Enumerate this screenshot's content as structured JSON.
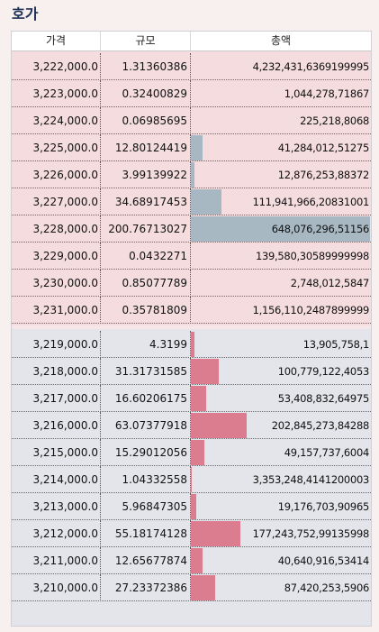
{
  "title": "호가",
  "headers": {
    "price": "가격",
    "size": "규모",
    "total": "총액"
  },
  "colors": {
    "ask_bg": "#f4dcdf",
    "bid_bg": "#e3e5ea",
    "ask_bar": "#a7b8c3",
    "bid_bar": "#db7d8f",
    "title": "#1c2f55"
  },
  "asks": [
    {
      "price": "3,222,000.0",
      "size": "1.31360386",
      "total": "4,232,431,6369199995",
      "pct": 0.0
    },
    {
      "price": "3,223,000.0",
      "size": "0.32400829",
      "total": "1,044,278,71867",
      "pct": 0.0
    },
    {
      "price": "3,224,000.0",
      "size": "0.06985695",
      "total": "225,218,8068",
      "pct": 0.0
    },
    {
      "price": "3,225,000.0",
      "size": "12.80124419",
      "total": "41,284,012,51275",
      "pct": 0.064
    },
    {
      "price": "3,226,000.0",
      "size": "3.99139922",
      "total": "12,876,253,88372",
      "pct": 0.02
    },
    {
      "price": "3,227,000.0",
      "size": "34.68917453",
      "total": "111,941,966,20831001",
      "pct": 0.173
    },
    {
      "price": "3,228,000.0",
      "size": "200.76713027",
      "total": "648,076,296,51156",
      "pct": 1.0
    },
    {
      "price": "3,229,000.0",
      "size": "0.0432271",
      "total": "139,580,30589999998",
      "pct": 0.0
    },
    {
      "price": "3,230,000.0",
      "size": "0.85077789",
      "total": "2,748,012,5847",
      "pct": 0.0
    },
    {
      "price": "3,231,000.0",
      "size": "0.35781809",
      "total": "1,156,110,2487899999",
      "pct": 0.0
    }
  ],
  "bids": [
    {
      "price": "3,219,000.0",
      "size": "4.3199",
      "total": "13,905,758,1",
      "pct": 0.022
    },
    {
      "price": "3,218,000.0",
      "size": "31.31731585",
      "total": "100,779,122,4053",
      "pct": 0.156
    },
    {
      "price": "3,217,000.0",
      "size": "16.60206175",
      "total": "53,408,832,64975",
      "pct": 0.083
    },
    {
      "price": "3,216,000.0",
      "size": "63.07377918",
      "total": "202,845,273,84288",
      "pct": 0.314
    },
    {
      "price": "3,215,000.0",
      "size": "15.29012056",
      "total": "49,157,737,6004",
      "pct": 0.076
    },
    {
      "price": "3,214,000.0",
      "size": "1.04332558",
      "total": "3,353,248,4141200003",
      "pct": 0.005
    },
    {
      "price": "3,213,000.0",
      "size": "5.96847305",
      "total": "19,176,703,90965",
      "pct": 0.03
    },
    {
      "price": "3,212,000.0",
      "size": "55.18174128",
      "total": "177,243,752,99135998",
      "pct": 0.275
    },
    {
      "price": "3,211,000.0",
      "size": "12.65677874",
      "total": "40,640,916,53414",
      "pct": 0.063
    },
    {
      "price": "3,210,000.0",
      "size": "27.23372386",
      "total": "87,420,253,5906",
      "pct": 0.136
    }
  ]
}
